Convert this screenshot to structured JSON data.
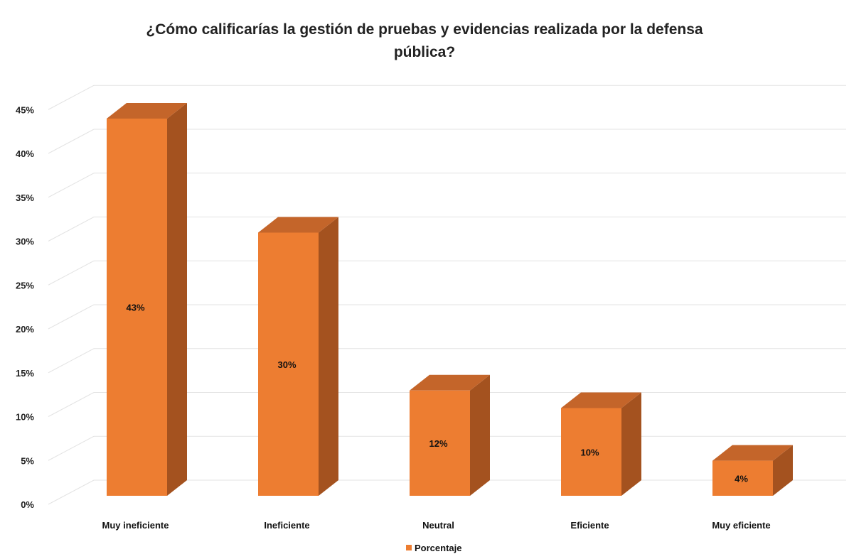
{
  "chart_data": {
    "type": "bar",
    "title": "¿Cómo calificarías la gestión de pruebas y evidencias realizada por la defensa pública?",
    "title_lines": [
      "¿Cómo calificarías la gestión de pruebas y evidencias realizada por la defensa",
      "pública?"
    ],
    "categories": [
      "Muy ineficiente",
      "Ineficiente",
      "Neutral",
      "Eficiente",
      "Muy eficiente"
    ],
    "series": [
      {
        "name": "Porcentaje",
        "values": [
          43,
          30,
          12,
          10,
          4
        ],
        "labels": [
          "43%",
          "30%",
          "12%",
          "10%",
          "4%"
        ]
      }
    ],
    "ylim": [
      0,
      45
    ],
    "yticks": [
      "0%",
      "5%",
      "10%",
      "15%",
      "20%",
      "25%",
      "30%",
      "35%",
      "40%",
      "45%"
    ],
    "grid": true,
    "legend_position": "bottom",
    "three_d": true,
    "colors": {
      "front": "#ED7D31",
      "side": "#A4521F",
      "top": "#C4652A",
      "grid": "#E3E3E3"
    }
  }
}
